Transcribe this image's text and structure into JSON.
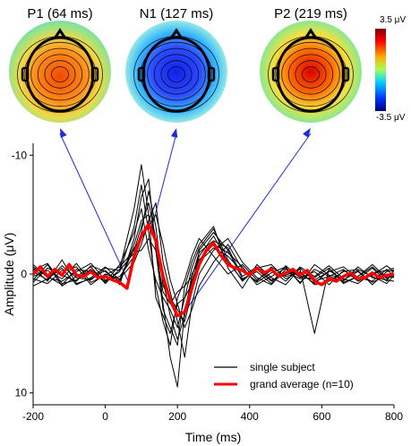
{
  "chart_data": {
    "type": "line",
    "xlabel": "Time (ms)",
    "ylabel": "Amplitude (μV)",
    "xlim": [
      -200,
      800
    ],
    "ylim": [
      -11,
      11
    ],
    "y_inverted": true,
    "x_ticks": [
      "-200",
      "0",
      "200",
      "400",
      "600",
      "800"
    ],
    "y_ticks": [
      "-10",
      "0",
      "10"
    ],
    "legend": {
      "placement": "bottom-right",
      "items": [
        {
          "label": "single subject",
          "color": "#000000"
        },
        {
          "label": "grand average (n=10)",
          "color": "#ff0000"
        }
      ]
    },
    "series": [
      {
        "name": "grand average (n=10)",
        "color": "#ff0000",
        "x": [
          -200,
          -180,
          -160,
          -140,
          -120,
          -100,
          -80,
          -60,
          -40,
          -20,
          0,
          20,
          40,
          60,
          80,
          100,
          120,
          140,
          160,
          180,
          200,
          220,
          240,
          260,
          280,
          300,
          320,
          340,
          360,
          380,
          400,
          420,
          440,
          460,
          480,
          500,
          520,
          540,
          560,
          580,
          600,
          620,
          640,
          660,
          680,
          700,
          720,
          740,
          760,
          780,
          800
        ],
        "y": [
          0,
          -0.6,
          0.2,
          -0.4,
          0.1,
          -0.8,
          0.1,
          0.2,
          -0.2,
          0.3,
          0.2,
          0.5,
          0.7,
          1.2,
          -1.5,
          -3.2,
          -4.2,
          -2.8,
          0.2,
          2.2,
          3.5,
          3.2,
          1.2,
          -0.8,
          -2.0,
          -2.6,
          -1.6,
          -0.8,
          -0.5,
          -0.3,
          0.1,
          -0.5,
          -0.1,
          -0.4,
          0.2,
          -0.1,
          -0.4,
          0.1,
          -0.3,
          0.6,
          0.9,
          0.4,
          0.6,
          0.2,
          -0.1,
          0.4,
          0.3,
          -0.1,
          0.3,
          0.1,
          0.0
        ]
      },
      {
        "name": "",
        "color": "#000000",
        "x": [
          -200,
          -160,
          -120,
          -80,
          -40,
          0,
          40,
          80,
          100,
          120,
          140,
          160,
          180,
          200,
          220,
          240,
          260,
          300,
          340,
          380,
          420,
          460,
          500,
          540,
          580,
          620,
          660,
          700,
          740,
          780,
          800
        ],
        "y": [
          0.5,
          -0.8,
          1.0,
          0.2,
          -0.6,
          0.8,
          -0.4,
          -5.5,
          -9.2,
          -5.0,
          2.0,
          3.5,
          5.0,
          2.5,
          2.0,
          0.8,
          -1.5,
          -3.2,
          -1.0,
          0.5,
          -0.4,
          0.6,
          -0.2,
          0.4,
          0.3,
          -0.5,
          0.8,
          0.2,
          -0.6,
          0.4,
          0.0
        ]
      },
      {
        "name": "",
        "color": "#000000",
        "x": [
          -200,
          -160,
          -120,
          -80,
          -40,
          0,
          40,
          80,
          100,
          120,
          140,
          160,
          180,
          200,
          220,
          240,
          260,
          300,
          340,
          380,
          420,
          460,
          500,
          540,
          580,
          620,
          660,
          700,
          740,
          780,
          800
        ],
        "y": [
          -0.5,
          0.6,
          -1.2,
          0.8,
          0.4,
          -0.3,
          0.9,
          -3.0,
          -6.5,
          -8.0,
          -2.0,
          3.0,
          4.5,
          6.0,
          1.0,
          -1.0,
          -2.5,
          -4.0,
          -0.5,
          1.2,
          -0.8,
          0.3,
          0.9,
          -0.5,
          0.6,
          0.2,
          -0.4,
          0.6,
          0.1,
          -0.7,
          -0.2
        ]
      },
      {
        "name": "",
        "color": "#000000",
        "x": [
          -200,
          -160,
          -120,
          -80,
          -40,
          0,
          40,
          80,
          100,
          120,
          140,
          160,
          180,
          200,
          220,
          240,
          260,
          300,
          340,
          380,
          420,
          460,
          500,
          540,
          580,
          620,
          660,
          700,
          740,
          780,
          800
        ],
        "y": [
          0.2,
          -0.3,
          0.4,
          -0.9,
          0.7,
          0.1,
          -0.6,
          -2.0,
          -4.0,
          -6.0,
          -3.0,
          2.5,
          7.0,
          9.5,
          3.0,
          0.5,
          -1.0,
          -2.2,
          -1.5,
          -0.2,
          0.6,
          -0.6,
          0.2,
          -0.1,
          0.8,
          -0.3,
          0.5,
          -0.2,
          0.7,
          0.1,
          0.3
        ]
      },
      {
        "name": "",
        "color": "#000000",
        "x": [
          -200,
          -160,
          -120,
          -80,
          -40,
          0,
          40,
          80,
          100,
          120,
          140,
          160,
          180,
          200,
          220,
          240,
          260,
          300,
          340,
          380,
          420,
          460,
          500,
          540,
          580,
          620,
          660,
          700,
          740,
          780,
          800
        ],
        "y": [
          -0.8,
          0.3,
          0.6,
          -0.2,
          -0.9,
          0.5,
          0.2,
          -1.5,
          -3.5,
          -7.0,
          -4.0,
          1.0,
          2.0,
          3.0,
          4.0,
          1.5,
          -2.0,
          -3.5,
          -2.0,
          0.4,
          -0.2,
          0.8,
          -0.7,
          0.3,
          -0.2,
          0.9,
          -0.3,
          0.4,
          -0.5,
          0.6,
          -0.4
        ]
      },
      {
        "name": "",
        "color": "#000000",
        "x": [
          -200,
          -160,
          -120,
          -80,
          -40,
          0,
          40,
          80,
          100,
          120,
          140,
          160,
          180,
          200,
          220,
          240,
          260,
          300,
          340,
          380,
          420,
          460,
          500,
          540,
          580,
          620,
          660,
          700,
          740,
          780,
          800
        ],
        "y": [
          1.0,
          0.4,
          -0.5,
          0.9,
          0.3,
          -0.6,
          0.5,
          -2.5,
          -4.5,
          -5.0,
          -3.0,
          0.5,
          3.5,
          5.5,
          3.5,
          0.0,
          -1.2,
          -2.5,
          -1.8,
          -0.6,
          0.9,
          0.2,
          -0.5,
          0.7,
          -0.4,
          0.2,
          0.6,
          -0.6,
          0.3,
          0.5,
          0.6
        ]
      },
      {
        "name": "",
        "color": "#000000",
        "x": [
          -200,
          -160,
          -120,
          -80,
          -40,
          0,
          40,
          80,
          100,
          120,
          140,
          160,
          180,
          200,
          220,
          240,
          260,
          300,
          340,
          380,
          420,
          460,
          500,
          540,
          580,
          620,
          660,
          700,
          740,
          780,
          800
        ],
        "y": [
          -0.3,
          -0.9,
          0.8,
          0.5,
          -0.4,
          0.6,
          -0.2,
          -4.0,
          -7.5,
          -3.5,
          1.0,
          4.0,
          6.0,
          2.0,
          0.5,
          -1.5,
          -3.0,
          -1.5,
          0.0,
          -0.8,
          0.5,
          -0.3,
          0.6,
          -0.6,
          0.2,
          -0.7,
          0.4,
          0.8,
          -0.1,
          -0.3,
          -0.5
        ]
      },
      {
        "name": "",
        "color": "#000000",
        "x": [
          -200,
          -160,
          -120,
          -80,
          -40,
          0,
          40,
          80,
          100,
          120,
          140,
          160,
          180,
          200,
          220,
          240,
          260,
          300,
          340,
          380,
          420,
          460,
          500,
          540,
          580,
          620,
          660,
          700,
          740,
          780,
          800
        ],
        "y": [
          0.4,
          0.8,
          -0.3,
          -0.6,
          0.9,
          0.0,
          0.4,
          -1.0,
          -2.5,
          -4.5,
          -6.0,
          -1.0,
          1.5,
          4.0,
          7.0,
          2.5,
          0.0,
          -2.0,
          -3.0,
          -1.0,
          0.3,
          0.9,
          -0.4,
          0.2,
          0.5,
          -0.2,
          -0.6,
          0.3,
          0.6,
          -0.4,
          0.2
        ]
      },
      {
        "name": "",
        "color": "#000000",
        "x": [
          -200,
          -160,
          -120,
          -80,
          -40,
          0,
          40,
          80,
          100,
          120,
          140,
          160,
          180,
          200,
          220,
          240,
          260,
          300,
          340,
          380,
          420,
          460,
          500,
          540,
          580,
          620,
          660,
          700,
          740,
          780,
          800
        ],
        "y": [
          -0.6,
          0.2,
          0.9,
          -0.4,
          -0.2,
          0.7,
          -0.8,
          -3.5,
          -5.5,
          -2.0,
          0.5,
          2.0,
          3.0,
          4.5,
          2.0,
          -0.5,
          -2.2,
          -3.8,
          -1.2,
          0.6,
          -0.5,
          -0.8,
          0.4,
          -0.2,
          0.9,
          0.6,
          -0.2,
          -0.4,
          0.2,
          0.8,
          0.1
        ]
      },
      {
        "name": "",
        "color": "#000000",
        "x": [
          -200,
          -160,
          -120,
          -80,
          -40,
          0,
          40,
          80,
          100,
          120,
          140,
          160,
          180,
          200,
          220,
          240,
          260,
          300,
          340,
          380,
          420,
          460,
          500,
          540,
          580,
          620,
          660,
          700,
          740,
          780,
          800
        ],
        "y": [
          0.7,
          -0.5,
          0.1,
          0.6,
          -0.7,
          -0.2,
          0.6,
          -2.2,
          -3.0,
          -4.0,
          -5.0,
          -2.5,
          0.5,
          2.5,
          4.5,
          3.0,
          1.0,
          -1.0,
          -2.5,
          -0.4,
          0.7,
          -0.1,
          -0.6,
          0.8,
          -0.8,
          0.1,
          0.3,
          -0.3,
          0.9,
          -0.2,
          -0.3
        ]
      },
      {
        "name": "",
        "color": "#000000",
        "x": [
          -200,
          -160,
          -120,
          -80,
          -40,
          0,
          40,
          80,
          100,
          120,
          140,
          160,
          180,
          200,
          220,
          240,
          260,
          300,
          340,
          380,
          420,
          460,
          500,
          540,
          580,
          620,
          660,
          700,
          740,
          780,
          800
        ],
        "y": [
          -0.2,
          0.5,
          -0.7,
          0.3,
          0.5,
          -0.5,
          -0.3,
          -1.8,
          -2.0,
          -3.0,
          -2.0,
          1.5,
          2.5,
          1.5,
          1.0,
          0.2,
          -1.8,
          -2.8,
          -2.2,
          0.2,
          -0.6,
          0.5,
          0.1,
          -0.4,
          5.0,
          -0.5,
          0.7,
          0.2,
          -0.8,
          0.3,
          0.2
        ]
      }
    ],
    "annotations": [
      {
        "x": 64,
        "label": "P1 (64 ms)"
      },
      {
        "x": 127,
        "label": "N1 (127 ms)"
      },
      {
        "x": 219,
        "label": "P2 (219 ms)"
      }
    ]
  },
  "topomaps": [
    {
      "title": "P1 (64 ms)",
      "polarity": "positive",
      "intensity": 0.7
    },
    {
      "title": "N1 (127 ms)",
      "polarity": "negative",
      "intensity": 0.9
    },
    {
      "title": "P2 (219 ms)",
      "polarity": "positive",
      "intensity": 1.0
    }
  ],
  "colorbar": {
    "max_label": "3.5 μV",
    "min_label": "-3.5 μV"
  }
}
